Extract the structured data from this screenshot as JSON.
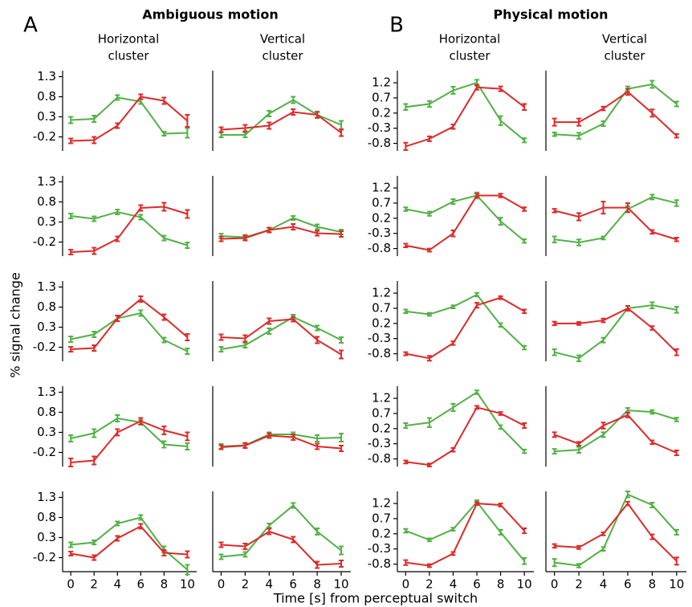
{
  "figure": {
    "panel_labels": [
      "A",
      "B"
    ],
    "group_titles": [
      "Ambiguous motion",
      "Physical motion"
    ],
    "column_titles": [
      [
        "Horizontal",
        "cluster"
      ],
      [
        "Vertical",
        "cluster"
      ],
      [
        "Horizontal",
        "cluster"
      ],
      [
        "Vertical",
        "cluster"
      ]
    ],
    "ylabel": "% signal change",
    "xlabel": "Time [s] from perceptual switch"
  },
  "chart_data": [
    {
      "type": "line",
      "x": [
        0,
        2,
        4,
        6,
        8,
        10
      ],
      "xlim": [
        -0.7,
        10.8
      ],
      "ylim": [
        -0.55,
        1.45
      ],
      "yticks": [
        1.3,
        0.8,
        0.3,
        -0.2
      ],
      "series": [
        {
          "color": "#52b046",
          "values": [
            0.22,
            0.25,
            0.78,
            0.68,
            -0.12,
            -0.1
          ],
          "errors": [
            0.08,
            0.08,
            0.06,
            0.06,
            0.05,
            0.12
          ]
        },
        {
          "color": "#dd2a2a",
          "values": [
            -0.3,
            -0.28,
            0.08,
            0.8,
            0.7,
            0.2
          ],
          "errors": [
            0.06,
            0.08,
            0.06,
            0.06,
            0.08,
            0.15
          ]
        }
      ]
    },
    {
      "type": "line",
      "x": [
        0,
        2,
        4,
        6,
        8,
        10
      ],
      "xlim": [
        -0.7,
        10.8
      ],
      "ylim": [
        -0.55,
        1.45
      ],
      "series": [
        {
          "color": "#52b046",
          "values": [
            -0.15,
            -0.15,
            0.38,
            0.72,
            0.35,
            0.1
          ],
          "errors": [
            0.06,
            0.06,
            0.07,
            0.08,
            0.08,
            0.1
          ]
        },
        {
          "color": "#dd2a2a",
          "values": [
            -0.02,
            0.02,
            0.08,
            0.42,
            0.35,
            -0.1
          ],
          "errors": [
            0.06,
            0.08,
            0.08,
            0.07,
            0.07,
            0.08
          ]
        }
      ]
    },
    {
      "type": "line",
      "x": [
        0,
        2,
        4,
        6,
        8,
        10
      ],
      "xlim": [
        -0.7,
        10.8
      ],
      "ylim": [
        -1.05,
        1.6
      ],
      "yticks": [
        1.2,
        0.7,
        0.2,
        -0.3,
        -0.8
      ],
      "series": [
        {
          "color": "#52b046",
          "values": [
            0.4,
            0.5,
            0.95,
            1.2,
            -0.05,
            -0.7
          ],
          "errors": [
            0.1,
            0.1,
            0.12,
            0.1,
            0.15,
            0.07
          ]
        },
        {
          "color": "#dd2a2a",
          "values": [
            -0.9,
            -0.65,
            -0.25,
            1.05,
            1.0,
            0.4
          ],
          "errors": [
            0.12,
            0.08,
            0.07,
            0.08,
            0.08,
            0.1
          ]
        }
      ]
    },
    {
      "type": "line",
      "x": [
        0,
        2,
        4,
        6,
        8,
        10
      ],
      "xlim": [
        -0.7,
        10.8
      ],
      "ylim": [
        -1.05,
        1.6
      ],
      "series": [
        {
          "color": "#52b046",
          "values": [
            -0.5,
            -0.55,
            -0.15,
            1.0,
            1.15,
            0.5
          ],
          "errors": [
            0.06,
            0.1,
            0.08,
            0.08,
            0.12,
            0.08
          ]
        },
        {
          "color": "#dd2a2a",
          "values": [
            -0.1,
            -0.1,
            0.35,
            0.9,
            0.2,
            -0.55
          ],
          "errors": [
            0.12,
            0.12,
            0.06,
            0.1,
            0.12,
            0.06
          ]
        }
      ]
    },
    {
      "type": "line",
      "x": [
        0,
        2,
        4,
        6,
        8,
        10
      ],
      "xlim": [
        -0.7,
        10.8
      ],
      "ylim": [
        -0.55,
        1.45
      ],
      "yticks": [
        1.3,
        0.8,
        0.3,
        -0.2
      ],
      "series": [
        {
          "color": "#52b046",
          "values": [
            0.45,
            0.38,
            0.55,
            0.42,
            -0.1,
            -0.28
          ],
          "errors": [
            0.06,
            0.06,
            0.06,
            0.06,
            0.06,
            0.07
          ]
        },
        {
          "color": "#dd2a2a",
          "values": [
            -0.45,
            -0.42,
            -0.12,
            0.65,
            0.68,
            0.5
          ],
          "errors": [
            0.06,
            0.08,
            0.06,
            0.07,
            0.1,
            0.1
          ]
        }
      ]
    },
    {
      "type": "line",
      "x": [
        0,
        2,
        4,
        6,
        8,
        10
      ],
      "xlim": [
        -0.7,
        10.8
      ],
      "ylim": [
        -0.55,
        1.45
      ],
      "series": [
        {
          "color": "#52b046",
          "values": [
            -0.05,
            -0.08,
            0.1,
            0.4,
            0.18,
            0.05
          ],
          "errors": [
            0.06,
            0.06,
            0.05,
            0.05,
            0.06,
            0.06
          ]
        },
        {
          "color": "#dd2a2a",
          "values": [
            -0.12,
            -0.1,
            0.1,
            0.18,
            0.02,
            0.0
          ],
          "errors": [
            0.06,
            0.06,
            0.06,
            0.07,
            0.06,
            0.07
          ]
        }
      ]
    },
    {
      "type": "line",
      "x": [
        0,
        2,
        4,
        6,
        8,
        10
      ],
      "xlim": [
        -0.7,
        10.8
      ],
      "ylim": [
        -1.05,
        1.6
      ],
      "yticks": [
        1.2,
        0.7,
        0.2,
        -0.3,
        -0.8
      ],
      "series": [
        {
          "color": "#52b046",
          "values": [
            0.5,
            0.35,
            0.75,
            0.95,
            0.1,
            -0.55
          ],
          "errors": [
            0.06,
            0.07,
            0.08,
            0.1,
            0.12,
            0.06
          ]
        },
        {
          "color": "#dd2a2a",
          "values": [
            -0.7,
            -0.85,
            -0.3,
            0.95,
            0.95,
            0.5
          ],
          "errors": [
            0.06,
            0.05,
            0.1,
            0.06,
            0.06,
            0.06
          ]
        }
      ]
    },
    {
      "type": "line",
      "x": [
        0,
        2,
        4,
        6,
        8,
        10
      ],
      "xlim": [
        -0.7,
        10.8
      ],
      "ylim": [
        -1.05,
        1.6
      ],
      "series": [
        {
          "color": "#52b046",
          "values": [
            -0.5,
            -0.6,
            -0.45,
            0.5,
            0.9,
            0.7
          ],
          "errors": [
            0.1,
            0.1,
            0.05,
            0.1,
            0.08,
            0.1
          ]
        },
        {
          "color": "#dd2a2a",
          "values": [
            0.45,
            0.25,
            0.55,
            0.55,
            -0.25,
            -0.5
          ],
          "errors": [
            0.06,
            0.12,
            0.2,
            0.15,
            0.06,
            0.06
          ]
        }
      ]
    },
    {
      "type": "line",
      "x": [
        0,
        2,
        4,
        6,
        8,
        10
      ],
      "xlim": [
        -0.7,
        10.8
      ],
      "ylim": [
        -0.55,
        1.45
      ],
      "yticks": [
        1.3,
        0.8,
        0.3,
        -0.2
      ],
      "series": [
        {
          "color": "#52b046",
          "values": [
            0.0,
            0.12,
            0.52,
            0.65,
            -0.02,
            -0.3
          ],
          "errors": [
            0.07,
            0.07,
            0.07,
            0.07,
            0.06,
            0.07
          ]
        },
        {
          "color": "#dd2a2a",
          "values": [
            -0.25,
            -0.22,
            0.52,
            1.0,
            0.55,
            0.05
          ],
          "errors": [
            0.06,
            0.07,
            0.07,
            0.07,
            0.07,
            0.08
          ]
        }
      ]
    },
    {
      "type": "line",
      "x": [
        0,
        2,
        4,
        6,
        8,
        10
      ],
      "xlim": [
        -0.7,
        10.8
      ],
      "ylim": [
        -0.55,
        1.45
      ],
      "series": [
        {
          "color": "#52b046",
          "values": [
            -0.25,
            -0.15,
            0.2,
            0.55,
            0.28,
            -0.02
          ],
          "errors": [
            0.06,
            0.06,
            0.07,
            0.06,
            0.06,
            0.07
          ]
        },
        {
          "color": "#dd2a2a",
          "values": [
            0.05,
            0.02,
            0.45,
            0.5,
            -0.02,
            -0.38
          ],
          "errors": [
            0.07,
            0.08,
            0.07,
            0.06,
            0.08,
            0.1
          ]
        }
      ]
    },
    {
      "type": "line",
      "x": [
        0,
        2,
        4,
        6,
        8,
        10
      ],
      "xlim": [
        -0.7,
        10.8
      ],
      "ylim": [
        -1.05,
        1.6
      ],
      "yticks": [
        1.2,
        0.7,
        0.2,
        -0.3,
        -0.8
      ],
      "series": [
        {
          "color": "#52b046",
          "values": [
            0.6,
            0.5,
            0.75,
            1.15,
            0.15,
            -0.6
          ],
          "errors": [
            0.06,
            0.05,
            0.05,
            0.06,
            0.06,
            0.06
          ]
        },
        {
          "color": "#dd2a2a",
          "values": [
            -0.8,
            -0.95,
            -0.45,
            0.8,
            1.05,
            0.6
          ],
          "errors": [
            0.05,
            0.08,
            0.06,
            0.08,
            0.05,
            0.06
          ]
        }
      ]
    },
    {
      "type": "line",
      "x": [
        0,
        2,
        4,
        6,
        8,
        10
      ],
      "xlim": [
        -0.7,
        10.8
      ],
      "ylim": [
        -1.05,
        1.6
      ],
      "series": [
        {
          "color": "#52b046",
          "values": [
            -0.75,
            -0.95,
            -0.35,
            0.7,
            0.8,
            0.65
          ],
          "errors": [
            0.1,
            0.1,
            0.08,
            0.08,
            0.1,
            0.1
          ]
        },
        {
          "color": "#dd2a2a",
          "values": [
            0.2,
            0.2,
            0.3,
            0.7,
            0.05,
            -0.75
          ],
          "errors": [
            0.06,
            0.05,
            0.06,
            0.08,
            0.06,
            0.1
          ]
        }
      ]
    },
    {
      "type": "line",
      "x": [
        0,
        2,
        4,
        6,
        8,
        10
      ],
      "xlim": [
        -0.7,
        10.8
      ],
      "ylim": [
        -0.55,
        1.45
      ],
      "yticks": [
        1.3,
        0.8,
        0.3,
        -0.2
      ],
      "series": [
        {
          "color": "#52b046",
          "values": [
            0.15,
            0.28,
            0.65,
            0.55,
            0.0,
            -0.05
          ],
          "errors": [
            0.08,
            0.1,
            0.08,
            0.06,
            0.08,
            0.08
          ]
        },
        {
          "color": "#dd2a2a",
          "values": [
            -0.45,
            -0.4,
            0.3,
            0.58,
            0.35,
            0.2
          ],
          "errors": [
            0.1,
            0.1,
            0.08,
            0.08,
            0.1,
            0.1
          ]
        }
      ]
    },
    {
      "type": "line",
      "x": [
        0,
        2,
        4,
        6,
        8,
        10
      ],
      "xlim": [
        -0.7,
        10.8
      ],
      "ylim": [
        -0.55,
        1.45
      ],
      "series": [
        {
          "color": "#52b046",
          "values": [
            -0.05,
            -0.02,
            0.25,
            0.25,
            0.15,
            0.17
          ],
          "errors": [
            0.06,
            0.06,
            0.05,
            0.05,
            0.08,
            0.1
          ]
        },
        {
          "color": "#dd2a2a",
          "values": [
            -0.07,
            -0.03,
            0.22,
            0.18,
            -0.05,
            -0.1
          ],
          "errors": [
            0.05,
            0.06,
            0.06,
            0.07,
            0.07,
            0.07
          ]
        }
      ]
    },
    {
      "type": "line",
      "x": [
        0,
        2,
        4,
        6,
        8,
        10
      ],
      "xlim": [
        -0.7,
        10.8
      ],
      "ylim": [
        -1.05,
        1.6
      ],
      "yticks": [
        1.2,
        0.7,
        0.2,
        -0.3,
        -0.8
      ],
      "series": [
        {
          "color": "#52b046",
          "values": [
            0.3,
            0.4,
            0.9,
            1.4,
            0.25,
            -0.55
          ],
          "errors": [
            0.08,
            0.15,
            0.12,
            0.06,
            0.06,
            0.06
          ]
        },
        {
          "color": "#dd2a2a",
          "values": [
            -0.9,
            -1.0,
            -0.5,
            0.9,
            0.7,
            0.3
          ],
          "errors": [
            0.05,
            0.05,
            0.06,
            0.05,
            0.05,
            0.08
          ]
        }
      ]
    },
    {
      "type": "line",
      "x": [
        0,
        2,
        4,
        6,
        8,
        10
      ],
      "xlim": [
        -0.7,
        10.8
      ],
      "ylim": [
        -1.05,
        1.6
      ],
      "series": [
        {
          "color": "#52b046",
          "values": [
            -0.55,
            -0.5,
            0.0,
            0.8,
            0.75,
            0.5
          ],
          "errors": [
            0.08,
            0.1,
            0.08,
            0.08,
            0.06,
            0.06
          ]
        },
        {
          "color": "#dd2a2a",
          "values": [
            0.0,
            -0.3,
            0.3,
            0.65,
            -0.25,
            -0.6
          ],
          "errors": [
            0.08,
            0.06,
            0.1,
            0.08,
            0.06,
            0.08
          ]
        }
      ]
    },
    {
      "type": "line",
      "x": [
        0,
        2,
        4,
        6,
        8,
        10
      ],
      "xlim": [
        -0.7,
        10.8
      ],
      "ylim": [
        -0.55,
        1.45
      ],
      "yticks": [
        1.3,
        0.8,
        0.3,
        -0.2
      ],
      "series": [
        {
          "color": "#52b046",
          "values": [
            0.12,
            0.18,
            0.65,
            0.8,
            0.0,
            -0.5
          ],
          "errors": [
            0.06,
            0.05,
            0.05,
            0.06,
            0.08,
            0.12
          ]
        },
        {
          "color": "#dd2a2a",
          "values": [
            -0.1,
            -0.2,
            0.28,
            0.58,
            -0.08,
            -0.12
          ],
          "errors": [
            0.05,
            0.06,
            0.06,
            0.06,
            0.07,
            0.08
          ]
        }
      ]
    },
    {
      "type": "line",
      "x": [
        0,
        2,
        4,
        6,
        8,
        10
      ],
      "xlim": [
        -0.7,
        10.8
      ],
      "ylim": [
        -0.55,
        1.45
      ],
      "series": [
        {
          "color": "#52b046",
          "values": [
            -0.18,
            -0.12,
            0.6,
            1.1,
            0.45,
            -0.02
          ],
          "errors": [
            0.06,
            0.06,
            0.05,
            0.06,
            0.08,
            0.1
          ]
        },
        {
          "color": "#dd2a2a",
          "values": [
            0.12,
            0.08,
            0.45,
            0.25,
            -0.38,
            -0.35
          ],
          "errors": [
            0.06,
            0.07,
            0.07,
            0.07,
            0.08,
            0.08
          ]
        }
      ]
    },
    {
      "type": "line",
      "x": [
        0,
        2,
        4,
        6,
        8,
        10
      ],
      "xlim": [
        -0.7,
        10.8
      ],
      "ylim": [
        -1.05,
        1.6
      ],
      "yticks": [
        1.2,
        0.7,
        0.2,
        -0.3,
        -0.8
      ],
      "series": [
        {
          "color": "#52b046",
          "values": [
            0.3,
            0.0,
            0.35,
            1.25,
            0.25,
            -0.7
          ],
          "errors": [
            0.06,
            0.05,
            0.05,
            0.06,
            0.08,
            0.1
          ]
        },
        {
          "color": "#dd2a2a",
          "values": [
            -0.75,
            -0.85,
            -0.45,
            1.2,
            1.15,
            0.3
          ],
          "errors": [
            0.08,
            0.05,
            0.05,
            0.05,
            0.05,
            0.08
          ]
        }
      ]
    },
    {
      "type": "line",
      "x": [
        0,
        2,
        4,
        6,
        8,
        10
      ],
      "xlim": [
        -0.7,
        10.8
      ],
      "ylim": [
        -1.05,
        1.6
      ],
      "series": [
        {
          "color": "#52b046",
          "values": [
            -0.75,
            -0.85,
            -0.3,
            1.5,
            1.15,
            0.25
          ],
          "errors": [
            0.12,
            0.06,
            0.06,
            0.1,
            0.08,
            0.08
          ]
        },
        {
          "color": "#dd2a2a",
          "values": [
            -0.2,
            -0.25,
            0.2,
            1.2,
            0.1,
            -0.7
          ],
          "errors": [
            0.06,
            0.05,
            0.05,
            0.06,
            0.08,
            0.12
          ]
        }
      ]
    }
  ],
  "xticks": [
    0,
    2,
    4,
    6,
    8,
    10
  ]
}
